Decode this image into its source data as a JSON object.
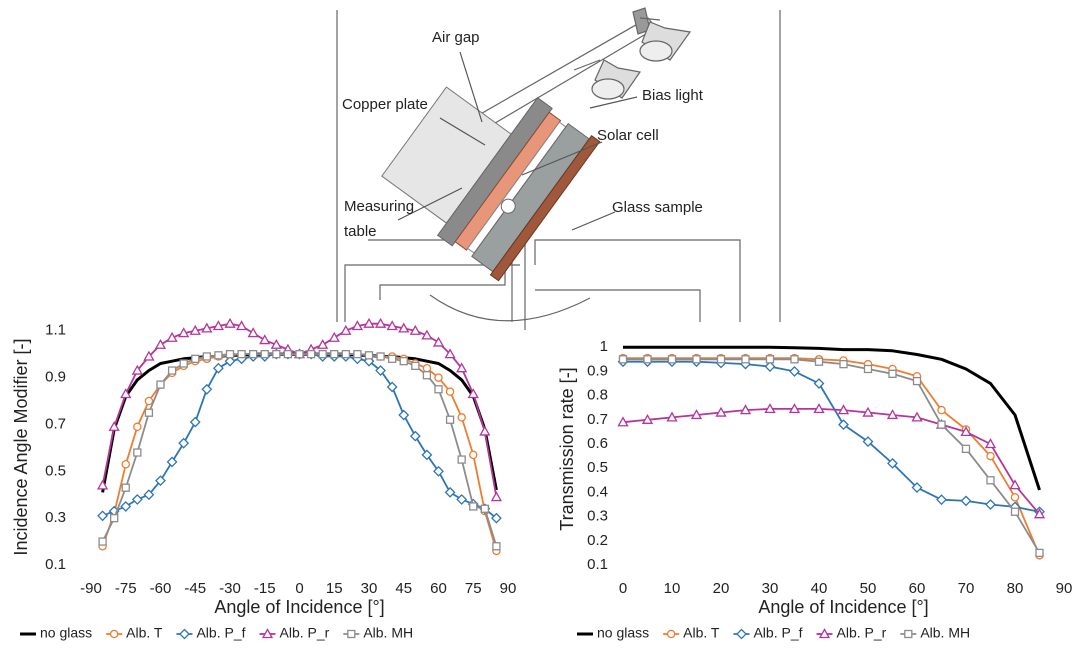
{
  "diagram": {
    "labels": [
      "Air gap",
      "Copper plate",
      "Bias light",
      "Solar cell",
      "Measuring",
      "table",
      "Glass sample"
    ]
  },
  "chart_data": [
    {
      "type": "line",
      "ylabel": "Incidence Angle Modifier [-]",
      "xlabel": "Angle of Incidence [°]",
      "xlim": [
        -90,
        90
      ],
      "xticks": [
        -90,
        -75,
        -60,
        -45,
        -30,
        -15,
        0,
        15,
        30,
        45,
        60,
        75,
        90
      ],
      "ylim": [
        0.1,
        1.15
      ],
      "yticks": [
        0.1,
        0.3,
        0.5,
        0.7,
        0.9,
        1.1
      ],
      "grid": false,
      "legend": "bottom",
      "x": [
        -85,
        -80,
        -75,
        -70,
        -65,
        -60,
        -55,
        -50,
        -45,
        -40,
        -35,
        -30,
        -25,
        -20,
        -15,
        -10,
        -5,
        0,
        5,
        10,
        15,
        20,
        25,
        30,
        35,
        40,
        45,
        50,
        55,
        60,
        65,
        70,
        75,
        80,
        85
      ],
      "series": [
        {
          "name": "no glass",
          "color": "#000000",
          "marker": "none",
          "values": [
            0.41,
            0.68,
            0.82,
            0.89,
            0.93,
            0.96,
            0.97,
            0.98,
            0.985,
            0.99,
            0.99,
            0.995,
            0.995,
            1.0,
            1.0,
            1.0,
            1.0,
            1.0,
            1.0,
            1.0,
            1.0,
            1.0,
            0.995,
            0.995,
            0.99,
            0.99,
            0.985,
            0.98,
            0.97,
            0.96,
            0.93,
            0.89,
            0.82,
            0.68,
            0.42
          ]
        },
        {
          "name": "Alb. T",
          "color": "#ed7d31",
          "marker": "circle",
          "values": [
            0.18,
            0.32,
            0.53,
            0.69,
            0.8,
            0.87,
            0.92,
            0.95,
            0.97,
            0.98,
            0.99,
            0.995,
            1.0,
            1.0,
            1.0,
            1.0,
            1.0,
            1.0,
            1.0,
            1.0,
            1.0,
            1.0,
            1.0,
            0.995,
            0.99,
            0.99,
            0.98,
            0.96,
            0.94,
            0.9,
            0.84,
            0.73,
            0.57,
            0.33,
            0.16
          ]
        },
        {
          "name": "Alb. P_f",
          "color": "#2e75b6",
          "marker": "diamond",
          "values": [
            0.31,
            0.33,
            0.35,
            0.38,
            0.4,
            0.46,
            0.54,
            0.62,
            0.71,
            0.85,
            0.94,
            0.97,
            0.98,
            0.99,
            0.99,
            1.0,
            1.0,
            1.0,
            1.0,
            0.99,
            0.99,
            0.99,
            0.98,
            0.97,
            0.93,
            0.86,
            0.74,
            0.65,
            0.57,
            0.5,
            0.41,
            0.38,
            0.36,
            0.34,
            0.3
          ]
        },
        {
          "name": "Alb. P_r",
          "color": "#b5359b",
          "marker": "triangle",
          "values": [
            0.44,
            0.69,
            0.83,
            0.93,
            0.99,
            1.04,
            1.07,
            1.09,
            1.1,
            1.11,
            1.12,
            1.13,
            1.12,
            1.09,
            1.06,
            1.04,
            1.02,
            1.0,
            1.02,
            1.04,
            1.07,
            1.1,
            1.12,
            1.13,
            1.13,
            1.12,
            1.11,
            1.1,
            1.08,
            1.05,
            1.0,
            0.94,
            0.83,
            0.67,
            0.39
          ]
        },
        {
          "name": "Alb. MH",
          "color": "#8c8c8c",
          "marker": "square",
          "values": [
            0.2,
            0.3,
            0.43,
            0.58,
            0.75,
            0.87,
            0.93,
            0.96,
            0.98,
            0.99,
            0.995,
            1.0,
            1.0,
            1.0,
            1.0,
            1.0,
            1.0,
            1.0,
            1.0,
            1.0,
            1.0,
            1.0,
            1.0,
            0.995,
            0.99,
            0.98,
            0.97,
            0.95,
            0.91,
            0.85,
            0.72,
            0.55,
            0.35,
            0.34,
            0.18
          ]
        }
      ]
    },
    {
      "type": "line",
      "ylabel": "Transmission rate [-]",
      "xlabel": "Angle of Incidence [°]",
      "xlim": [
        0,
        90
      ],
      "xticks": [
        0,
        10,
        20,
        30,
        40,
        50,
        60,
        70,
        80,
        90
      ],
      "ylim": [
        0.1,
        1.1
      ],
      "yticks": [
        0.1,
        0.2,
        0.3,
        0.4,
        0.5,
        0.6,
        0.7,
        0.8,
        0.9,
        1.0
      ],
      "grid": false,
      "legend": "bottom",
      "x": [
        0,
        5,
        10,
        15,
        20,
        25,
        30,
        35,
        40,
        45,
        50,
        55,
        60,
        65,
        70,
        75,
        80,
        85
      ],
      "series": [
        {
          "name": "no glass",
          "color": "#000000",
          "marker": "none",
          "values": [
            1.0,
            1.0,
            1.0,
            1.0,
            1.0,
            1.0,
            1.0,
            0.998,
            0.995,
            0.99,
            0.99,
            0.985,
            0.97,
            0.95,
            0.91,
            0.85,
            0.72,
            0.41
          ]
        },
        {
          "name": "Alb. T",
          "color": "#ed7d31",
          "marker": "circle",
          "values": [
            0.955,
            0.955,
            0.955,
            0.955,
            0.955,
            0.955,
            0.955,
            0.955,
            0.95,
            0.945,
            0.93,
            0.91,
            0.88,
            0.74,
            0.66,
            0.55,
            0.38,
            0.14
          ]
        },
        {
          "name": "Alb. P_f",
          "color": "#2e75b6",
          "marker": "diamond",
          "values": [
            0.94,
            0.94,
            0.94,
            0.94,
            0.935,
            0.93,
            0.92,
            0.9,
            0.85,
            0.68,
            0.61,
            0.52,
            0.42,
            0.37,
            0.365,
            0.35,
            0.34,
            0.32
          ]
        },
        {
          "name": "Alb. P_r",
          "color": "#b5359b",
          "marker": "triangle",
          "values": [
            0.69,
            0.7,
            0.71,
            0.72,
            0.73,
            0.74,
            0.745,
            0.745,
            0.745,
            0.74,
            0.73,
            0.72,
            0.71,
            0.68,
            0.65,
            0.6,
            0.43,
            0.31
          ]
        },
        {
          "name": "Alb. MH",
          "color": "#8c8c8c",
          "marker": "square",
          "values": [
            0.95,
            0.95,
            0.95,
            0.95,
            0.95,
            0.95,
            0.95,
            0.95,
            0.94,
            0.93,
            0.91,
            0.89,
            0.86,
            0.68,
            0.58,
            0.45,
            0.32,
            0.15
          ]
        }
      ]
    }
  ]
}
